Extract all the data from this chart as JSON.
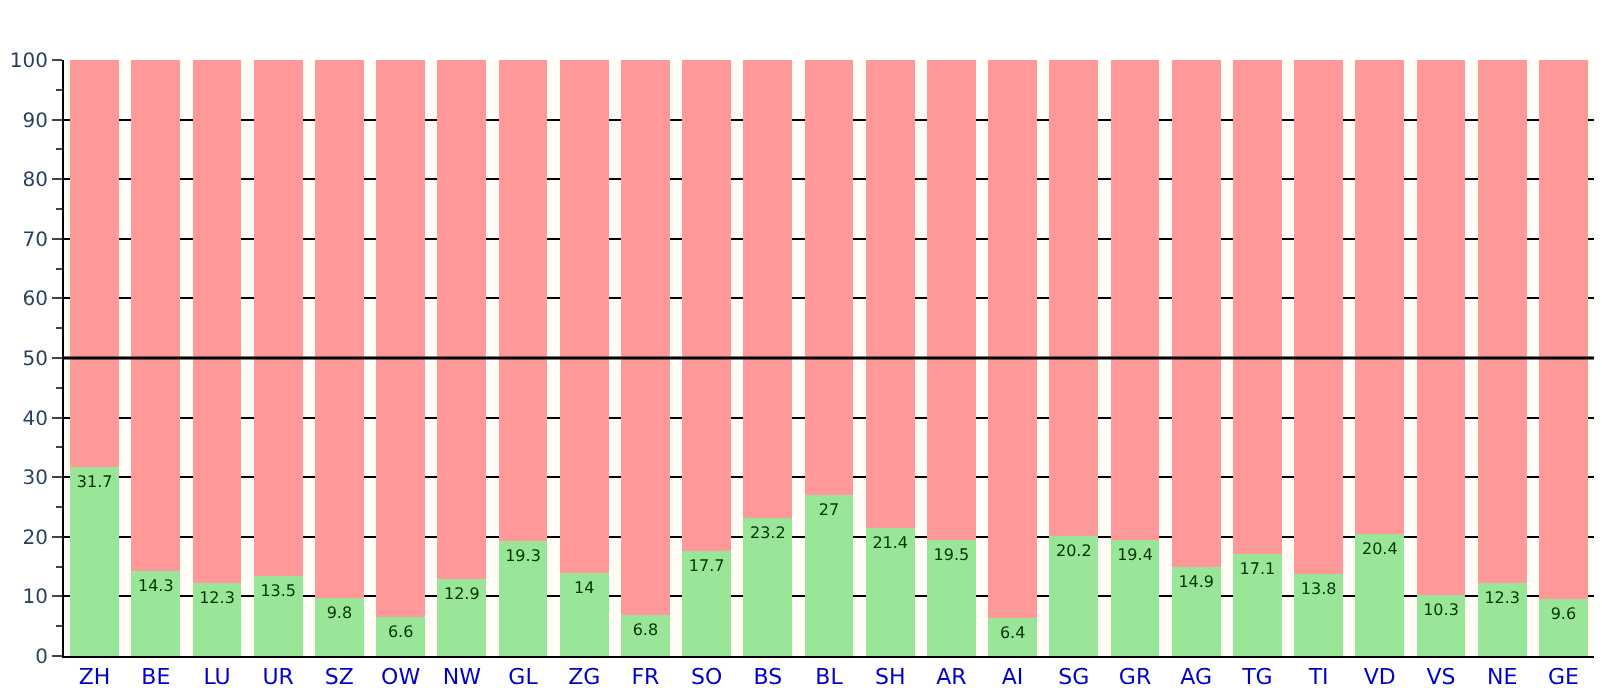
{
  "chart_data": {
    "type": "bar",
    "stacked": true,
    "categories": [
      "ZH",
      "BE",
      "LU",
      "UR",
      "SZ",
      "OW",
      "NW",
      "GL",
      "ZG",
      "FR",
      "SO",
      "BS",
      "BL",
      "SH",
      "AR",
      "AI",
      "SG",
      "GR",
      "AG",
      "TG",
      "TI",
      "VD",
      "VS",
      "NE",
      "GE"
    ],
    "series": [
      {
        "color": "#99e699",
        "values": [
          31.7,
          14.3,
          12.3,
          13.5,
          9.8,
          6.6,
          12.9,
          19.3,
          14,
          6.8,
          17.7,
          23.2,
          27,
          21.4,
          19.5,
          6.4,
          20.2,
          19.4,
          14.9,
          17.1,
          13.8,
          20.4,
          10.3,
          12.3,
          9.6
        ],
        "value_labels": [
          "31.7",
          "14.3",
          "12.3",
          "13.5",
          "9.8",
          "6.6",
          "12.9",
          "19.3",
          "14",
          "6.8",
          "17.7",
          "23.2",
          "27",
          "21.4",
          "19.5",
          "6.4",
          "20.2",
          "19.4",
          "14.9",
          "17.1",
          "13.8",
          "20.4",
          "10.3",
          "12.3",
          "9.6"
        ]
      },
      {
        "color": "#ff9999",
        "values": [
          68.3,
          85.7,
          87.7,
          86.5,
          90.2,
          93.4,
          87.1,
          80.7,
          86,
          93.2,
          82.3,
          76.8,
          73,
          78.6,
          80.5,
          93.6,
          79.8,
          80.6,
          85.1,
          82.9,
          86.2,
          79.6,
          89.7,
          87.7,
          90.4
        ]
      }
    ],
    "ylim": [
      0,
      100
    ],
    "yticks": [
      0,
      10,
      20,
      30,
      40,
      50,
      60,
      70,
      80,
      90,
      100
    ],
    "grid": "y",
    "ref_lines": [
      {
        "axis": "y",
        "value": 50,
        "color": "#000000"
      }
    ]
  }
}
